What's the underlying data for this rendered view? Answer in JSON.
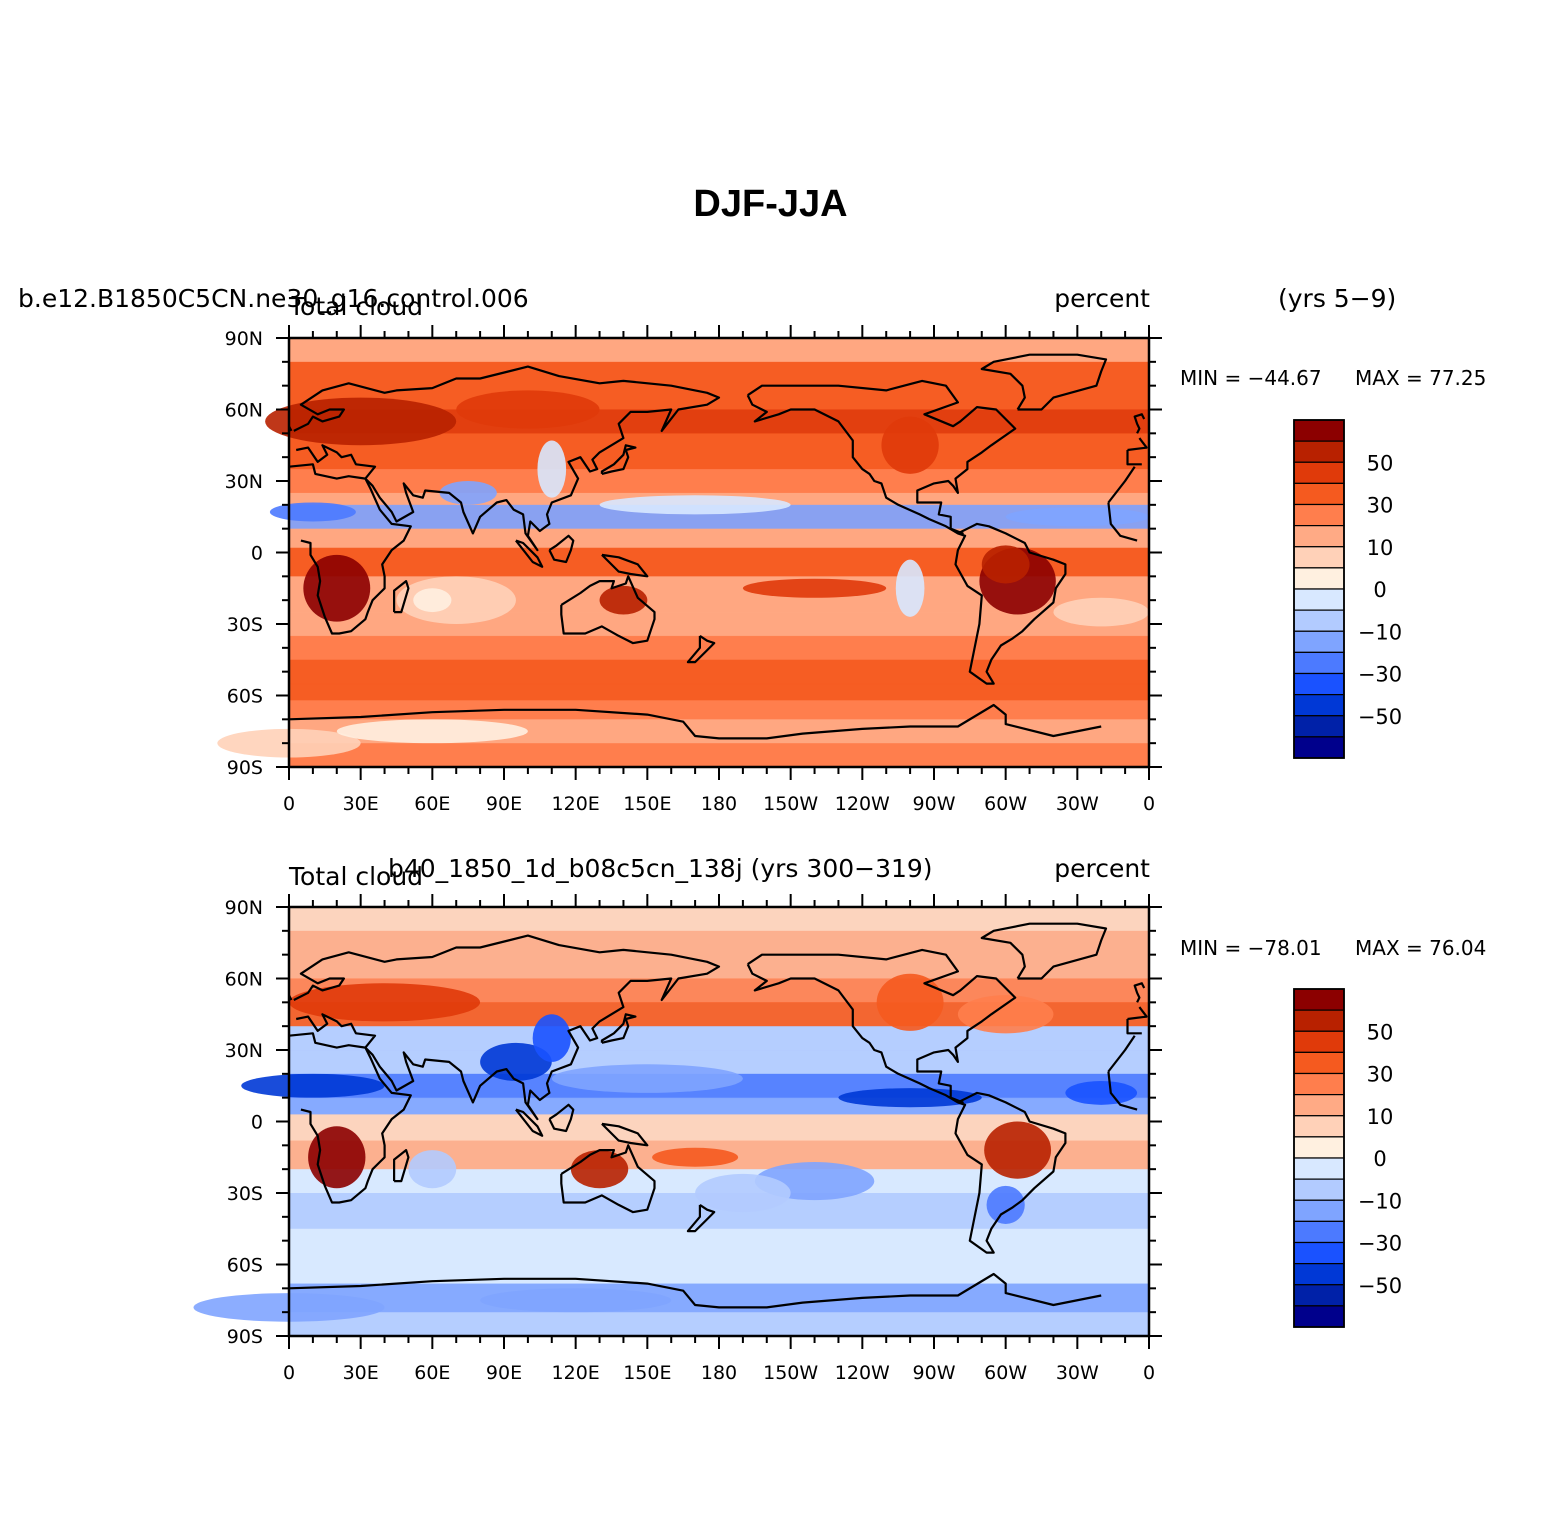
{
  "figure": {
    "title": "DJF-JJA"
  },
  "colors": [
    "#00008c",
    "#0021a8",
    "#0038d6",
    "#1a52ff",
    "#4c7aff",
    "#7fa4ff",
    "#b2cbff",
    "#d8e8ff",
    "#fff0e0",
    "#ffd1b8",
    "#ffaa85",
    "#ff7e4d",
    "#f55a1f",
    "#e03a0a",
    "#b82100",
    "#8c0000"
  ],
  "colorbar_labels": [
    "50",
    "30",
    "10",
    "0",
    "−10",
    "−30",
    "−50"
  ],
  "panels": [
    {
      "case_title": "b.e12.B1850C5CN.ne30_g16.control.006",
      "variable_title": "Total cloud",
      "units": "percent",
      "years": "(yrs 5−9)",
      "min_label": "MIN = −44.67",
      "max_label": "MAX =  77.25",
      "min": -44.67,
      "max": 77.25
    },
    {
      "case_title": "b40_1850_1d_b08c5cn_138j (yrs 300−319)",
      "variable_title": "Total cloud",
      "units": "percent",
      "years": "",
      "min_label": "MIN = −78.01",
      "max_label": "MAX =  76.04",
      "min": -78.01,
      "max": 76.04
    }
  ],
  "axes": {
    "lat_labels": [
      "90N",
      "60N",
      "30N",
      "0",
      "30S",
      "60S",
      "90S"
    ],
    "lon_labels": [
      "0",
      "30E",
      "60E",
      "90E",
      "120E",
      "150E",
      "180",
      "150W",
      "120W",
      "90W",
      "60W",
      "30W",
      "0"
    ]
  }
}
